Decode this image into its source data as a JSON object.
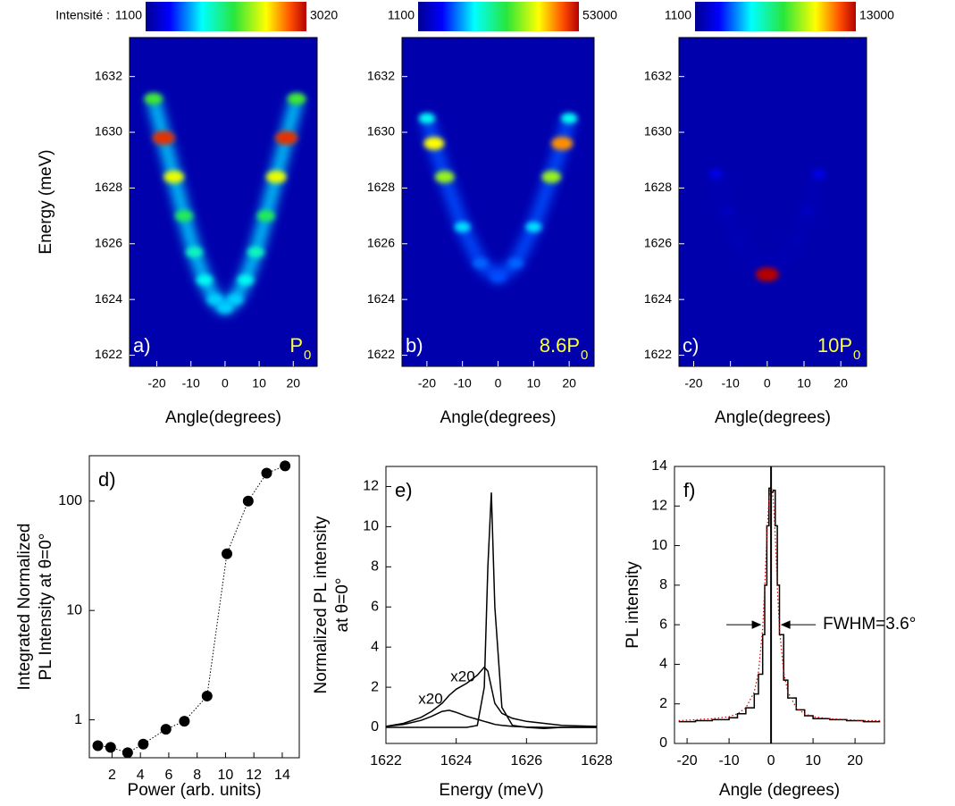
{
  "chart_data": [
    {
      "type": "heatmap",
      "panel_label": "a)",
      "annotation": "P",
      "annotation_subscript": "0",
      "colorbar": {
        "label": "Intensité :",
        "min": 1100,
        "max": 3020
      },
      "xlabel": "Angle(degrees)",
      "ylabel": "Energy (meV)",
      "x": [
        -21,
        -18,
        -15,
        -12,
        -9,
        -6,
        -3,
        0,
        3,
        6,
        9,
        12,
        15,
        18,
        21
      ],
      "values": [
        1631.2,
        1629.8,
        1628.4,
        1627.0,
        1625.7,
        1624.7,
        1624.0,
        1623.7,
        1624.0,
        1624.7,
        1625.7,
        1627.0,
        1628.4,
        1629.8,
        1631.2
      ],
      "intensity": [
        2200,
        2900,
        2500,
        2100,
        1900,
        1800,
        1700,
        1700,
        1700,
        1800,
        1900,
        2100,
        2500,
        2900,
        2200
      ],
      "xlim": [
        -28,
        27
      ],
      "xticks": [
        -20,
        -10,
        0,
        10,
        20
      ],
      "ylim": [
        1621.6,
        1633.4
      ],
      "yticks": [
        1622,
        1624,
        1626,
        1628,
        1630,
        1632
      ]
    },
    {
      "type": "heatmap",
      "panel_label": "b)",
      "annotation": "8.6P",
      "annotation_subscript": "0",
      "colorbar": {
        "min": 1100,
        "max": 53000
      },
      "xlabel": "Angle(degrees)",
      "x": [
        -20,
        -18,
        -15,
        -10,
        -5,
        0,
        5,
        10,
        15,
        18,
        20
      ],
      "values": [
        1630.5,
        1629.6,
        1628.4,
        1626.6,
        1625.3,
        1624.8,
        1625.3,
        1626.6,
        1628.4,
        1629.6,
        1630.5
      ],
      "intensity": [
        20000,
        40000,
        35000,
        18000,
        13000,
        12000,
        13000,
        18000,
        35000,
        45000,
        20000
      ],
      "xlim": [
        -27,
        27
      ],
      "xticks": [
        -20,
        -10,
        0,
        10,
        20
      ],
      "ylim": [
        1621.6,
        1633.4
      ],
      "yticks": [
        1622,
        1624,
        1626,
        1628,
        1630,
        1632
      ]
    },
    {
      "type": "heatmap",
      "panel_label": "c)",
      "annotation": "10P",
      "annotation_subscript": "0",
      "colorbar": {
        "min": 1100,
        "max": 13000
      },
      "xlabel": "Angle(degrees)",
      "x": [
        -14,
        -11,
        -8,
        0,
        8,
        11,
        14
      ],
      "values": [
        1628.5,
        1627.2,
        1626.1,
        1624.9,
        1626.1,
        1627.2,
        1628.5
      ],
      "intensity": [
        2500,
        1900,
        1700,
        13000,
        1700,
        1900,
        2500
      ],
      "xlim": [
        -24,
        27
      ],
      "xticks": [
        -20,
        -10,
        0,
        10,
        20
      ],
      "ylim": [
        1621.6,
        1633.4
      ],
      "yticks": [
        1622,
        1624,
        1626,
        1628,
        1630,
        1632
      ]
    },
    {
      "type": "scatter",
      "panel_label": "d)",
      "xlabel": "Power (arb. units)",
      "ylabel": [
        "Integrated Normalized",
        "PL Intensity at θ=0°"
      ],
      "x": [
        1.0,
        1.9,
        3.1,
        4.2,
        5.8,
        7.1,
        8.7,
        10.1,
        11.6,
        12.9,
        14.2
      ],
      "values": [
        0.58,
        0.56,
        0.5,
        0.6,
        0.82,
        0.97,
        1.65,
        33,
        100,
        180,
        210
      ],
      "color": "#000000",
      "line_style": "dotted",
      "log_y": true,
      "xlim": [
        0.4,
        15.2
      ],
      "xticks": [
        2,
        4,
        6,
        8,
        10,
        12,
        14
      ],
      "ylim": [
        0.45,
        260
      ],
      "yticks": [
        1,
        10,
        100
      ]
    },
    {
      "type": "line",
      "panel_label": "e)",
      "xlabel": "Energy (meV)",
      "ylabel": [
        "Normalized PL intensity",
        "at θ=0°"
      ],
      "annotations": [
        "x20",
        "x20"
      ],
      "x": [
        1622,
        1622.5,
        1623,
        1623.3,
        1623.6,
        1623.8,
        1624,
        1624.3,
        1624.6,
        1624.8,
        1624.9,
        1625,
        1625.1,
        1625.3,
        1625.6,
        1626,
        1626.5,
        1627,
        1628
      ],
      "series": [
        {
          "color": "#000000",
          "style": "solid",
          "values": [
            0.05,
            0.15,
            0.35,
            0.55,
            0.8,
            0.85,
            0.75,
            0.55,
            0.4,
            0.3,
            0.25,
            0.2,
            0.15,
            0.1,
            0.05,
            0.02,
            0,
            0,
            0
          ]
        },
        {
          "color": "#000000",
          "style": "solid",
          "values": [
            0.05,
            0.2,
            0.5,
            0.8,
            1.2,
            1.6,
            1.9,
            2.2,
            2.6,
            3.0,
            2.8,
            2.0,
            1.2,
            0.7,
            0.45,
            0.3,
            0.2,
            0.1,
            0.05
          ]
        },
        {
          "color": "#000000",
          "style": "solid",
          "values": [
            0,
            0,
            0,
            0,
            0,
            0,
            0,
            0,
            0.1,
            2,
            8,
            11.7,
            6,
            1,
            0.1,
            0,
            -0.05,
            0,
            0
          ]
        }
      ],
      "xlim": [
        1622,
        1628
      ],
      "xticks": [
        1622,
        1624,
        1626,
        1628
      ],
      "ylim": [
        -0.8,
        13
      ],
      "yticks": [
        0,
        2,
        4,
        6,
        8,
        10,
        12
      ]
    },
    {
      "type": "line",
      "panel_label": "f)",
      "xlabel": "Angle (degrees)",
      "ylabel": [
        "PL intensity"
      ],
      "annotation": "FWHM=3.6°",
      "vline": 0,
      "x": [
        -22,
        -18,
        -14,
        -10,
        -8,
        -6,
        -4,
        -3,
        -2,
        -1.5,
        -1,
        -0.5,
        0,
        0.5,
        1,
        1.5,
        2,
        3,
        4,
        6,
        8,
        10,
        14,
        18,
        22,
        26
      ],
      "series": [
        {
          "color": "#000000",
          "style": "step",
          "values": [
            1.1,
            1.15,
            1.2,
            1.3,
            1.5,
            1.8,
            2.5,
            3.5,
            5.5,
            8,
            11,
            12.9,
            12.7,
            12.8,
            11,
            8,
            5.5,
            3.2,
            2.3,
            1.7,
            1.4,
            1.25,
            1.2,
            1.15,
            1.1,
            1.1
          ]
        },
        {
          "color": "#cc0000",
          "style": "dotted",
          "values": [
            1.15,
            1.2,
            1.25,
            1.35,
            1.5,
            1.8,
            2.6,
            3.6,
            5.8,
            7.9,
            10.5,
            12.4,
            13.0,
            12.4,
            10.5,
            7.9,
            5.8,
            3.6,
            2.6,
            1.8,
            1.5,
            1.35,
            1.25,
            1.2,
            1.15,
            1.15
          ]
        }
      ],
      "xlim": [
        -23,
        27
      ],
      "xticks": [
        -20,
        -10,
        0,
        10,
        20
      ],
      "ylim": [
        0,
        14
      ],
      "yticks": [
        0,
        2,
        4,
        6,
        8,
        10,
        12,
        14
      ]
    }
  ]
}
